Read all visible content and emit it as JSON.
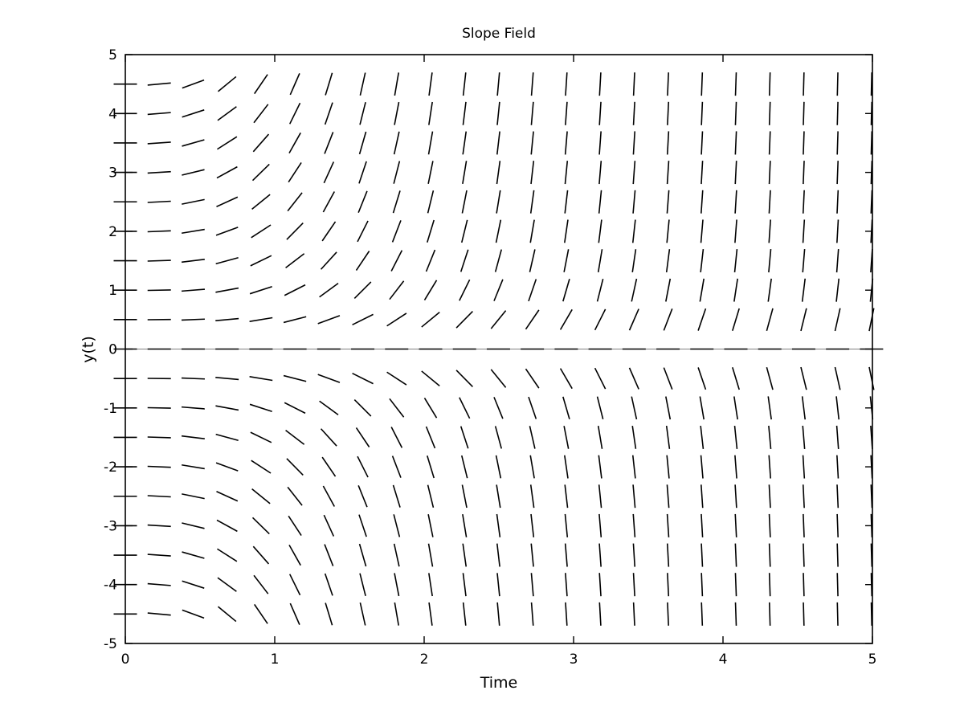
{
  "chart_data": {
    "type": "slope-field",
    "title": "Slope Field",
    "xlabel": "Time",
    "ylabel": "y(t)",
    "xlim": [
      0,
      5
    ],
    "ylim": [
      -5,
      5
    ],
    "x_ticks": [
      "0",
      "1",
      "2",
      "3",
      "4",
      "5"
    ],
    "y_ticks": [
      "5",
      "4",
      "3",
      "2",
      "1",
      "0",
      "-1",
      "-2",
      "-3",
      "-4",
      "-5"
    ],
    "grid": false,
    "reference_line_y": 0,
    "field": {
      "equation_form": "dy/dt = t^2 * y",
      "t_start": 0,
      "t_step": 0.227,
      "t_count": 23,
      "y_start": -4.5,
      "y_step": 0.5,
      "y_count": 19
    },
    "colors": {
      "segments": "#000000",
      "reference_line": "#808080",
      "frame": "#000000"
    }
  }
}
